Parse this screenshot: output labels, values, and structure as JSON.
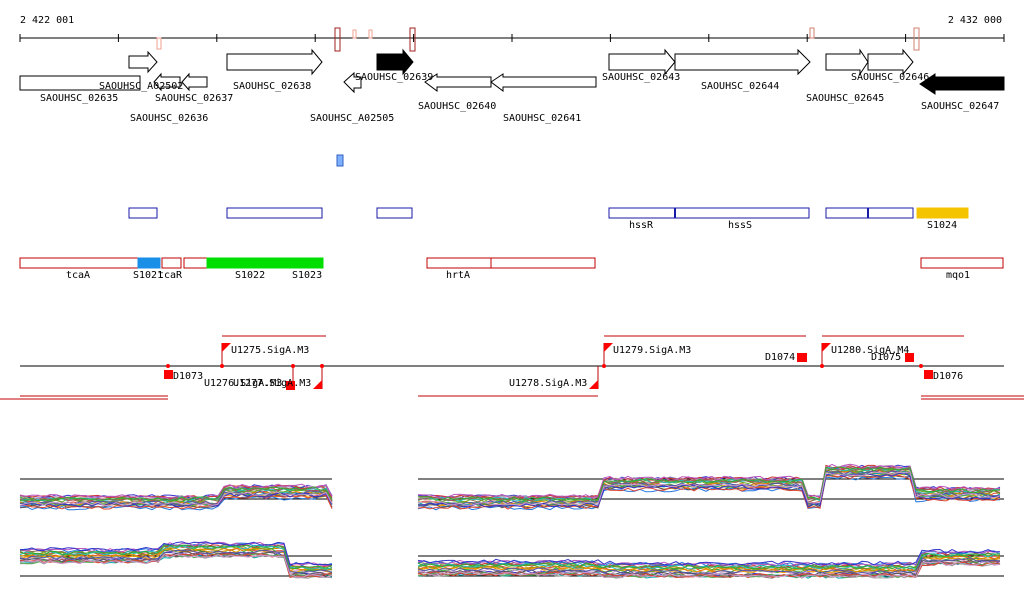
{
  "coords": {
    "start": "2 422 001",
    "end": "2 432 000"
  },
  "genes_labels": [
    "SAOUHSC_A02502",
    "SAOUHSC_02635",
    "SAOUHSC_02637",
    "SAOUHSC_02636",
    "SAOUHSC_02638",
    "SAOUHSC_A02505",
    "SAOUHSC_02639",
    "SAOUHSC_02640",
    "SAOUHSC_02641",
    "SAOUHSC_02643",
    "SAOUHSC_02644",
    "SAOUHSC_02645",
    "SAOUHSC_02646",
    "SAOUHSC_02647"
  ],
  "operon_labels": [
    "hssR",
    "hssS",
    "S1024"
  ],
  "feature_labels": [
    "tcaA",
    "S1021",
    "tcaR",
    "S1022",
    "S1023",
    "hrtA",
    "mqo1"
  ],
  "promoter_labels": [
    "U1275.SigA.M3",
    "U1276.SigA.M3",
    "U1277.SigA.M3",
    "U1278.SigA.M3",
    "U1279.SigA.M3",
    "U1280.SigA.M4",
    "D1073",
    "D1074",
    "D1075",
    "D1076"
  ],
  "colors": {
    "gene": "#000000",
    "operon": "#1a1aa8",
    "feature": "#c00000",
    "green": "#00dd00",
    "blue": "#1a8fe8",
    "gold": "#f5c400",
    "promoter": "#ff0000"
  }
}
